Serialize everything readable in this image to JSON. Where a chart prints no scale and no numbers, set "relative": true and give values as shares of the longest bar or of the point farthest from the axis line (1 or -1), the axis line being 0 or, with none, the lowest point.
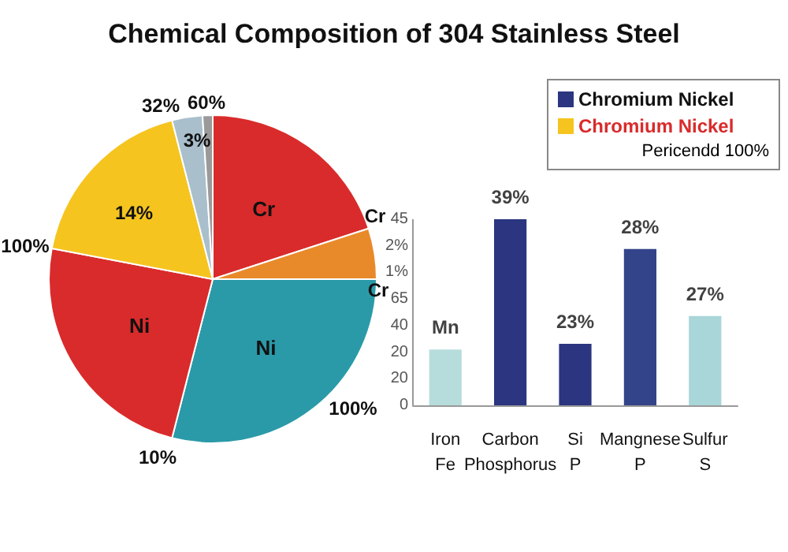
{
  "chart_data": [
    {
      "type": "pie",
      "title": "Chemical Composition of 304 Stainless Steel",
      "categories": [
        "Cr",
        null,
        "Ni",
        "Ni",
        null,
        null,
        null
      ],
      "values": [
        20,
        5,
        29,
        24,
        18,
        3,
        1
      ],
      "colors": [
        "#d92b2b",
        "#e88a2a",
        "#2a9aa8",
        "#d92b2b",
        "#f5c41f",
        "#a9bfcc",
        "#9a9a9a"
      ],
      "annotations": [
        "14%",
        "3%",
        "Cr",
        "Cr",
        "100%",
        "10%",
        "100%",
        "32%",
        "60%"
      ]
    },
    {
      "type": "bar",
      "categories": [
        "Iron\nFe",
        "Carbon\nPhosphorus",
        "Si\nP",
        "Mangnese\nP",
        "Sulfur\nS"
      ],
      "values": [
        0.3,
        1,
        0.33,
        0.84,
        0.48
      ],
      "relative": true,
      "colors": [
        "#b7dcdc",
        "#2b3580",
        "#2b3580",
        "#34448a",
        "#a9d6d8"
      ],
      "annotations": [
        {
          "text": "Mn",
          "x": "Iron\nFe",
          "y": 0.3
        },
        {
          "text": "39%",
          "x": "Carbon\nPhosphorus",
          "y": 1
        },
        {
          "text": "23%",
          "x": "Si\nP",
          "y": 0.33
        },
        {
          "text": "28%",
          "x": "Mangnese\nP",
          "y": 0.84
        },
        {
          "text": "27%",
          "x": "Sulfur\nS",
          "y": 0.48
        },
        "0",
        "20",
        "20",
        "40",
        "65",
        "1%",
        "2%",
        "45"
      ]
    },
    {
      "type": "other",
      "series": [
        {
          "name": "Chromium Nickel",
          "color": "#2b3580"
        },
        {
          "name": "Chromium Nickel",
          "color": "#f5c41f"
        }
      ],
      "annotations": [
        "Pericendd 100%"
      ],
      "legend": "top right"
    }
  ]
}
